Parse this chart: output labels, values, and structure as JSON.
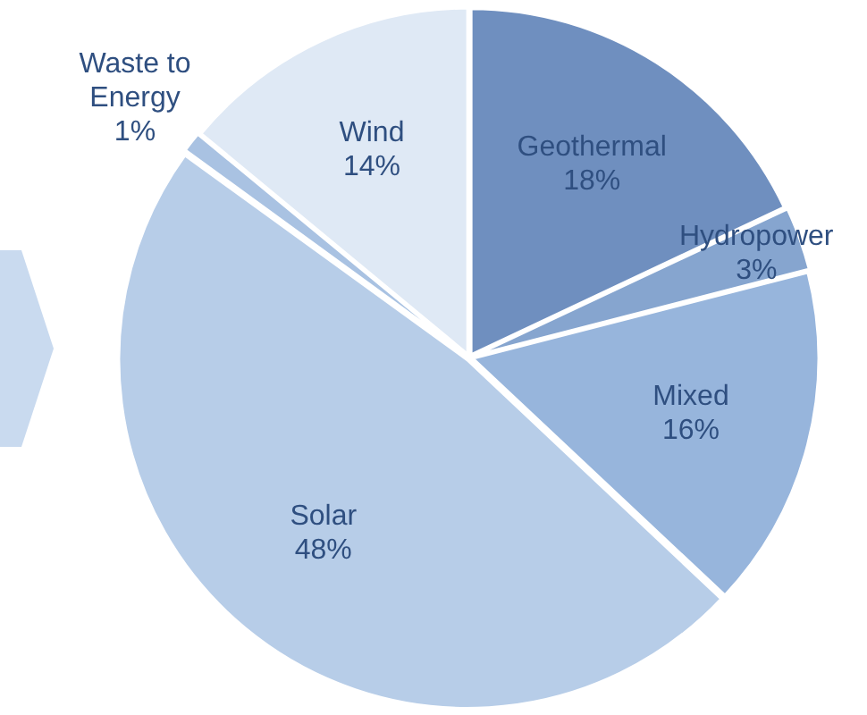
{
  "chart_data": {
    "type": "pie",
    "categories": [
      "Geothermal",
      "Hydropower",
      "Mixed",
      "Solar",
      "Waste to Energy",
      "Wind"
    ],
    "values": [
      18,
      3,
      16,
      48,
      1,
      14
    ],
    "value_labels": [
      "18%",
      "3%",
      "16%",
      "48%",
      "1%",
      "14%"
    ],
    "colors": [
      "#6f8fbf",
      "#86a5cf",
      "#97b5dc",
      "#b7cde8",
      "#a9c2e2",
      "#dfe9f5"
    ],
    "legend": false
  }
}
